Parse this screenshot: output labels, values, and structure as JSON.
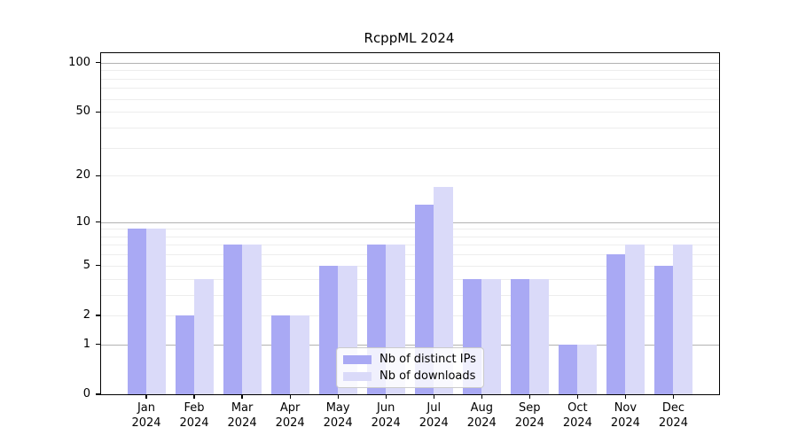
{
  "chart_data": {
    "type": "bar",
    "title": "RcppML 2024",
    "categories": [
      "Jan 2024",
      "Feb 2024",
      "Mar 2024",
      "Apr 2024",
      "May 2024",
      "Jun 2024",
      "Jul 2024",
      "Aug 2024",
      "Sep 2024",
      "Oct 2024",
      "Nov 2024",
      "Dec 2024"
    ],
    "series": [
      {
        "name": "Nb of distinct IPs",
        "color": "#a9a9f4",
        "values": [
          9,
          2,
          7,
          2,
          5,
          7,
          13,
          4,
          4,
          1,
          6,
          5
        ]
      },
      {
        "name": "Nb of downloads",
        "color": "#dadaf9",
        "values": [
          9,
          4,
          7,
          2,
          5,
          7,
          17,
          4,
          4,
          1,
          7,
          7
        ]
      }
    ],
    "xlabel": "",
    "ylabel": "",
    "y_scale": "log10(value+1)",
    "ylim": [
      0,
      114
    ],
    "yticks": [
      0,
      1,
      2,
      5,
      10,
      20,
      50,
      100
    ],
    "gridlines_major": [
      1,
      10,
      100
    ],
    "gridlines_minor": [
      2,
      3,
      4,
      5,
      6,
      7,
      8,
      9,
      20,
      30,
      40,
      50,
      60,
      70,
      80,
      90
    ],
    "grid": "horizontal",
    "legend_position": "lower center"
  }
}
